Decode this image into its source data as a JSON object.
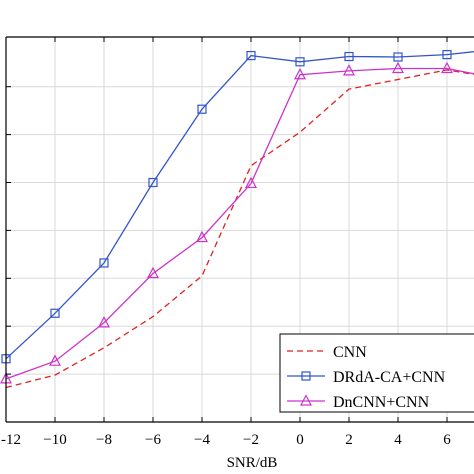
{
  "chart_data": {
    "type": "line",
    "title": "",
    "xlabel": "SNR/dB",
    "ylabel": "",
    "xlim": [
      -12,
      8
    ],
    "ylim": [
      0,
      8
    ],
    "x_ticks": [
      -12,
      -10,
      -8,
      -6,
      -4,
      -2,
      0,
      2,
      4,
      6
    ],
    "x_tick_labels": [
      "-12",
      "−10",
      "−8",
      "−6",
      "−4",
      "−2",
      "0",
      "2",
      "4",
      "6"
    ],
    "y_ticks": [
      1,
      2,
      3,
      4,
      5,
      6,
      7
    ],
    "grid": true,
    "legend_position": "bottom-right",
    "x": [
      -12,
      -10,
      -8,
      -6,
      -4,
      -2,
      0,
      2,
      4,
      6,
      8
    ],
    "series": [
      {
        "name": "CNN",
        "color": "#dd2222",
        "dash": "dashed",
        "marker": "none",
        "values": [
          0.72,
          0.98,
          1.55,
          2.2,
          3.05,
          5.35,
          6.05,
          6.95,
          7.15,
          7.35,
          7.18
        ]
      },
      {
        "name": "DRdA-CA+CNN",
        "color": "#3355cc",
        "dash": "solid",
        "marker": "square",
        "values": [
          1.32,
          2.27,
          3.32,
          5.0,
          6.53,
          7.65,
          7.52,
          7.63,
          7.62,
          7.67,
          7.78
        ]
      },
      {
        "name": "DnCNN+CNN",
        "color": "#cc33cc",
        "dash": "solid",
        "marker": "triangle",
        "values": [
          0.9,
          1.27,
          2.07,
          3.1,
          3.85,
          4.98,
          7.25,
          7.33,
          7.38,
          7.38,
          7.18
        ]
      }
    ]
  }
}
